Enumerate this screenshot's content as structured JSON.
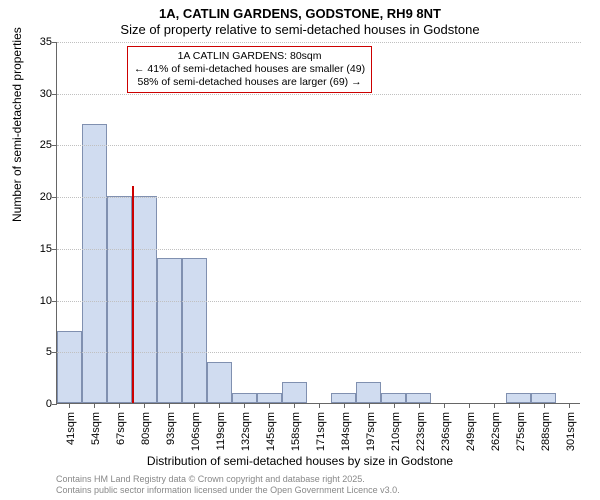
{
  "title_line1": "1A, CATLIN GARDENS, GODSTONE, RH9 8NT",
  "title_line2": "Size of property relative to semi-detached houses in Godstone",
  "ylabel": "Number of semi-detached properties",
  "xlabel": "Distribution of semi-detached houses by size in Godstone",
  "footer_line1": "Contains HM Land Registry data © Crown copyright and database right 2025.",
  "footer_line2": "Contains public sector information licensed under the Open Government Licence v3.0.",
  "chart": {
    "type": "histogram",
    "ylim": [
      0,
      35
    ],
    "ytick_step": 5,
    "yticks": [
      0,
      5,
      10,
      15,
      20,
      25,
      30,
      35
    ],
    "x_categories": [
      "41sqm",
      "54sqm",
      "67sqm",
      "80sqm",
      "93sqm",
      "106sqm",
      "119sqm",
      "132sqm",
      "145sqm",
      "158sqm",
      "171sqm",
      "184sqm",
      "197sqm",
      "210sqm",
      "223sqm",
      "236sqm",
      "249sqm",
      "262sqm",
      "275sqm",
      "288sqm",
      "301sqm"
    ],
    "values": [
      7,
      27,
      20,
      20,
      14,
      14,
      4,
      1,
      1,
      2,
      0,
      1,
      2,
      1,
      1,
      0,
      0,
      0,
      1,
      1,
      0
    ],
    "bar_fill": "#d0dcf0",
    "bar_border": "#8090b0",
    "background_color": "#ffffff",
    "grid_color": "#c0c0c0",
    "axis_color": "#666666",
    "marker_value": 80,
    "marker_color": "#cc0000",
    "label_fontsize": 12,
    "tick_fontsize": 11,
    "title_fontsize": 13
  },
  "annotation": {
    "line1": "1A CATLIN GARDENS: 80sqm",
    "line2": "← 41% of semi-detached houses are smaller (49)",
    "line3": "58% of semi-detached houses are larger (69) →",
    "border_color": "#cc0000"
  }
}
